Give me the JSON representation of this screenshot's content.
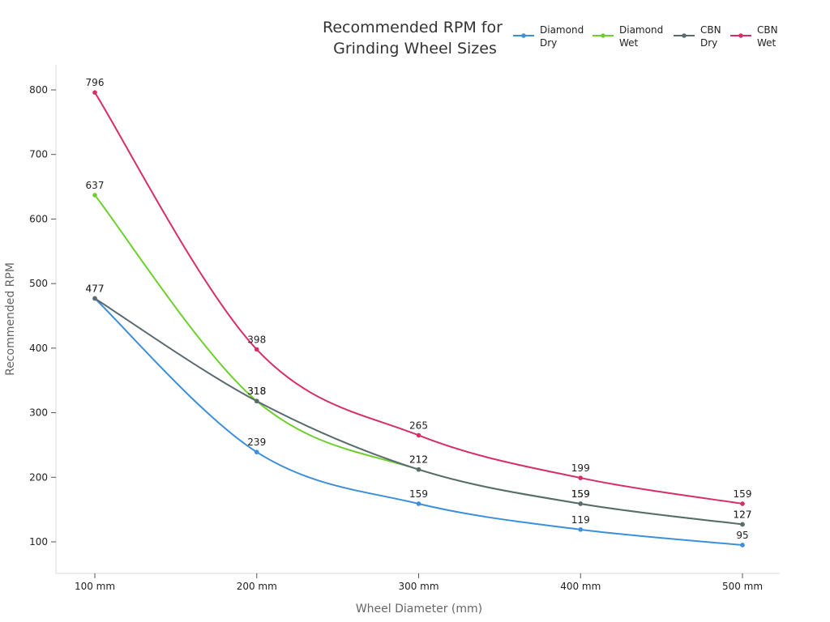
{
  "chart_data": {
    "type": "line",
    "title": "Recommended RPM for Grinding Wheel Sizes",
    "title_lines": [
      "Recommended RPM for",
      "Grinding Wheel Sizes"
    ],
    "xlabel": "Wheel Diameter (mm)",
    "ylabel": "Recommended RPM",
    "categories": [
      "100 mm",
      "200 mm",
      "300 mm",
      "400 mm",
      "500 mm"
    ],
    "y_ticks": [
      100,
      200,
      300,
      400,
      500,
      600,
      700,
      800
    ],
    "ylim": [
      50,
      840
    ],
    "grid": false,
    "legend_position": "top-right",
    "smooth": true,
    "series": [
      {
        "name": "Diamond Dry",
        "name_lines": [
          "Diamond",
          "Dry"
        ],
        "color": "#3b8fdb",
        "values": [
          477,
          239,
          159,
          119,
          95
        ]
      },
      {
        "name": "Diamond Wet",
        "name_lines": [
          "Diamond",
          "Wet"
        ],
        "color": "#6ccf2c",
        "values": [
          637,
          318,
          212,
          159,
          127
        ]
      },
      {
        "name": "CBN Dry",
        "name_lines": [
          "CBN",
          "Dry"
        ],
        "color": "#5a6b70",
        "values": [
          477,
          318,
          212,
          159,
          127
        ]
      },
      {
        "name": "CBN Wet",
        "name_lines": [
          "CBN",
          "Wet"
        ],
        "color": "#d62f66",
        "values": [
          796,
          398,
          265,
          199,
          159
        ]
      }
    ]
  }
}
